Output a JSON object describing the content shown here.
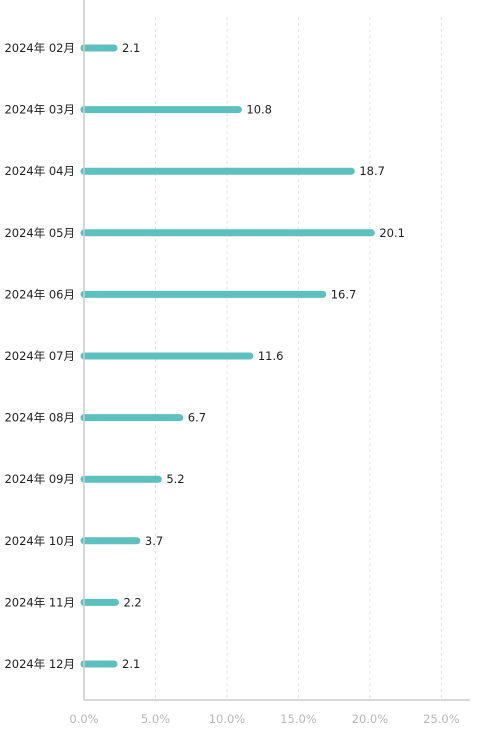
{
  "chart_data": {
    "type": "bar",
    "orientation": "horizontal",
    "categories": [
      "2024年 02月",
      "2024年 03月",
      "2024年 04月",
      "2024年 05月",
      "2024年 06月",
      "2024年 07月",
      "2024年 08月",
      "2024年 09月",
      "2024年 10月",
      "2024年 11月",
      "2024年 12月"
    ],
    "values": [
      2.1,
      10.8,
      18.7,
      20.1,
      16.7,
      11.6,
      6.7,
      5.2,
      3.7,
      2.2,
      2.1
    ],
    "value_labels": [
      "2.1",
      "10.8",
      "18.7",
      "20.1",
      "16.7",
      "11.6",
      "6.7",
      "5.2",
      "3.7",
      "2.2",
      "2.1"
    ],
    "x_ticks": [
      "0.0%",
      "5.0%",
      "10.0%",
      "15.0%",
      "20.0%",
      "25.0%"
    ],
    "xlim": [
      0,
      27
    ],
    "title": "",
    "xlabel": "",
    "ylabel": "",
    "grid": "vertical dashed",
    "legend": "none",
    "bar_color": "#5bc0be",
    "grid_color": "#e4e4e4",
    "axis_color": "#cccccc"
  }
}
